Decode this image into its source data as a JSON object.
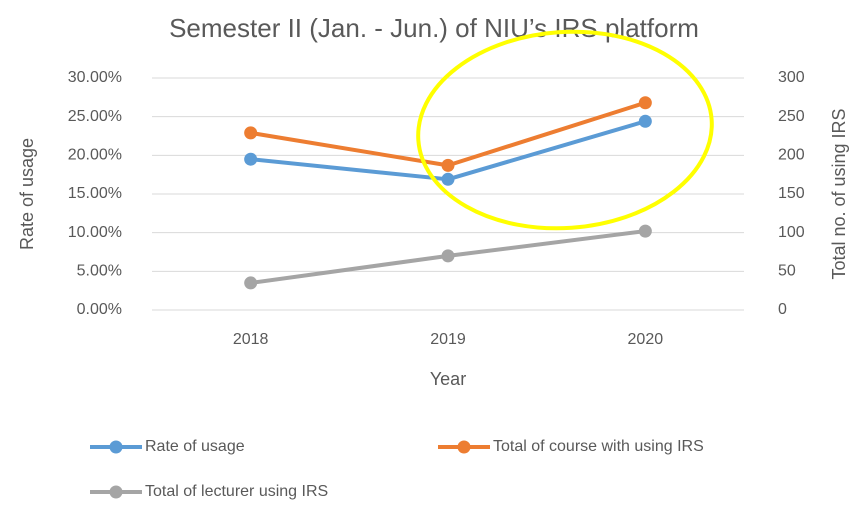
{
  "chart_data": {
    "type": "line",
    "title": "Semester II (Jan. -  Jun.) of NIU’s IRS platform",
    "xlabel": "Year",
    "ylabel": "Rate of usage",
    "y2label": "Total no. of using IRS",
    "categories": [
      "2018",
      "2019",
      "2020"
    ],
    "series": [
      {
        "name": "Rate of usage",
        "color": "#5b9bd5",
        "values": [
          19.5,
          16.9,
          24.4
        ]
      },
      {
        "name": "Total of course with using IRS",
        "color": "#ed7d31",
        "axis": "y2",
        "values": [
          229,
          187,
          268
        ]
      },
      {
        "name": "Total of lecturer using IRS",
        "color": "#a5a5a5",
        "axis": "y2",
        "values": [
          35,
          70,
          102
        ]
      }
    ],
    "ylim": [
      0,
      30
    ],
    "yticks": [
      {
        "value": 0,
        "label": "0.00%"
      },
      {
        "value": 5,
        "label": "5.00%"
      },
      {
        "value": 10,
        "label": "10.00%"
      },
      {
        "value": 15,
        "label": "15.00%"
      },
      {
        "value": 20,
        "label": "20.00%"
      },
      {
        "value": 25,
        "label": "25.00%"
      },
      {
        "value": 30,
        "label": "30.00%"
      }
    ],
    "y2lim": [
      0,
      300
    ],
    "y2ticks": [
      0,
      50,
      100,
      150,
      200,
      250,
      300
    ],
    "grid": true,
    "legend": "bottom"
  }
}
